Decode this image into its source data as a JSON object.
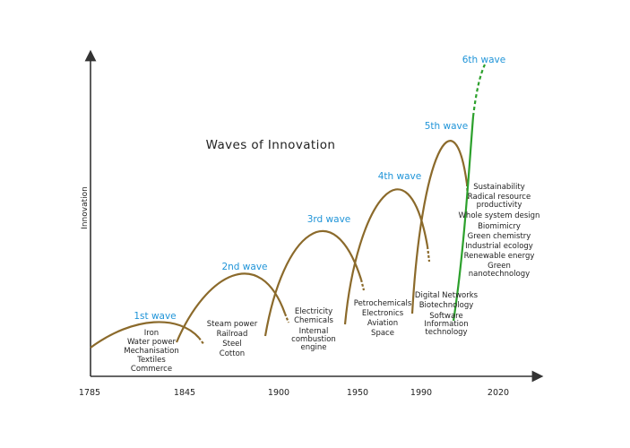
{
  "title": "Waves of Innovation",
  "y_axis_label": "Innovation",
  "x_ticks": [
    "1785",
    "1845",
    "1900",
    "1950",
    "1990",
    "2020"
  ],
  "colors": {
    "wave": "#8b6a2b",
    "sixth_wave": "#2ca02c",
    "label": "#1f94d8",
    "axis": "#333333"
  },
  "waves": [
    {
      "name": "1st wave",
      "items": [
        "Iron",
        "Water power",
        "Mechanisation",
        "Textiles",
        "Commerce"
      ]
    },
    {
      "name": "2nd wave",
      "items": [
        "Steam power",
        "Railroad",
        "Steel",
        "Cotton"
      ]
    },
    {
      "name": "3rd wave",
      "items": [
        "Electricity",
        "Chemicals",
        "Internal",
        "combustion",
        "engine"
      ]
    },
    {
      "name": "4th wave",
      "items": [
        "Petrochemicals",
        "Electronics",
        "Aviation",
        "Space"
      ]
    },
    {
      "name": "5th wave",
      "items": [
        "Digital Networks",
        "Biotechnology",
        "Software",
        "Information",
        "technology"
      ]
    },
    {
      "name": "6th wave",
      "items": [
        "Sustainability",
        "Radical resource",
        "productivity",
        "Whole system design",
        "Biomimicry",
        "Green chemistry",
        "Industrial ecology",
        "Renewable energy",
        "Green",
        "nanotechnology"
      ]
    }
  ]
}
